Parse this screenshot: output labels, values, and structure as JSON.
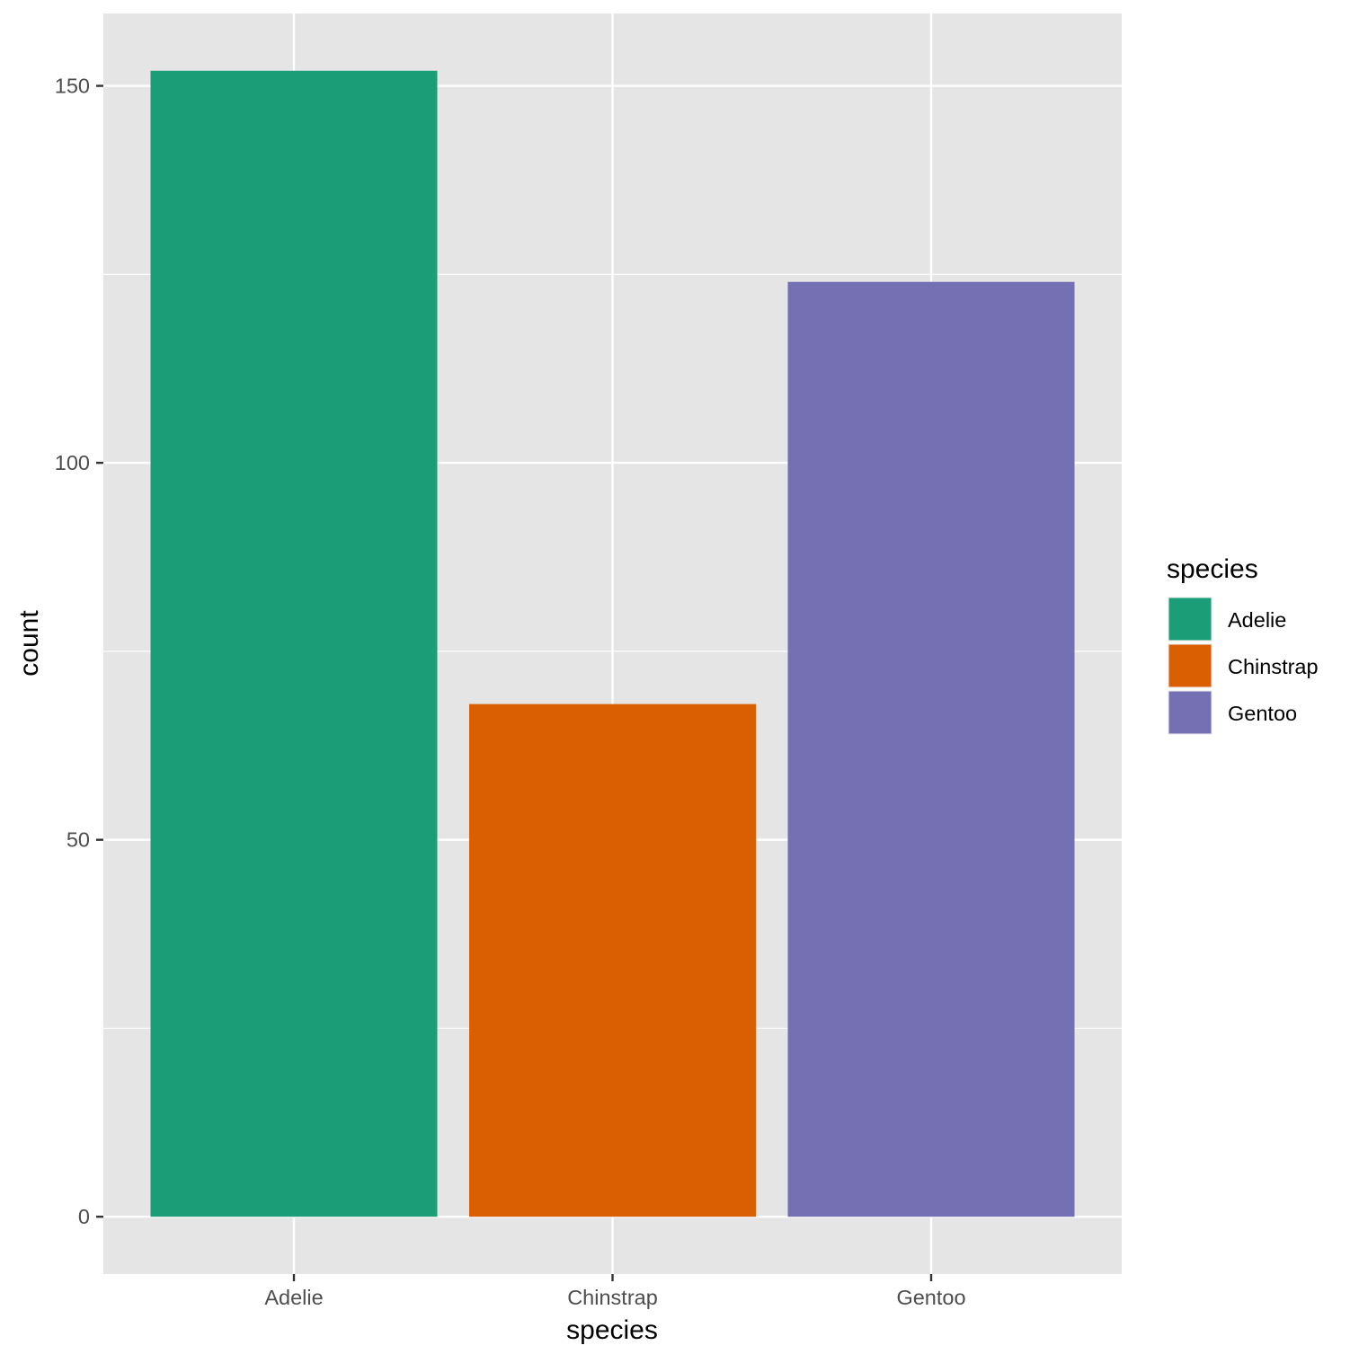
{
  "chart_data": {
    "type": "bar",
    "title": "",
    "xlabel": "species",
    "ylabel": "count",
    "categories": [
      "Adelie",
      "Chinstrap",
      "Gentoo"
    ],
    "values": [
      152,
      68,
      124
    ],
    "colors": [
      "#1B9E77",
      "#D95F02",
      "#7570B3"
    ],
    "ylim": [
      -7.6,
      159.6
    ],
    "yticks": [
      0,
      50,
      100,
      150
    ],
    "ytick_labels": [
      "0",
      "50",
      "100",
      "150"
    ],
    "grid": true,
    "panel_background": "#E5E5E5",
    "gridline_color": "#FFFFFF",
    "legend": {
      "title": "species",
      "placement": "right",
      "items": [
        {
          "label": "Adelie",
          "color": "#1B9E77"
        },
        {
          "label": "Chinstrap",
          "color": "#D95F02"
        },
        {
          "label": "Gentoo",
          "color": "#7570B3"
        }
      ]
    }
  }
}
